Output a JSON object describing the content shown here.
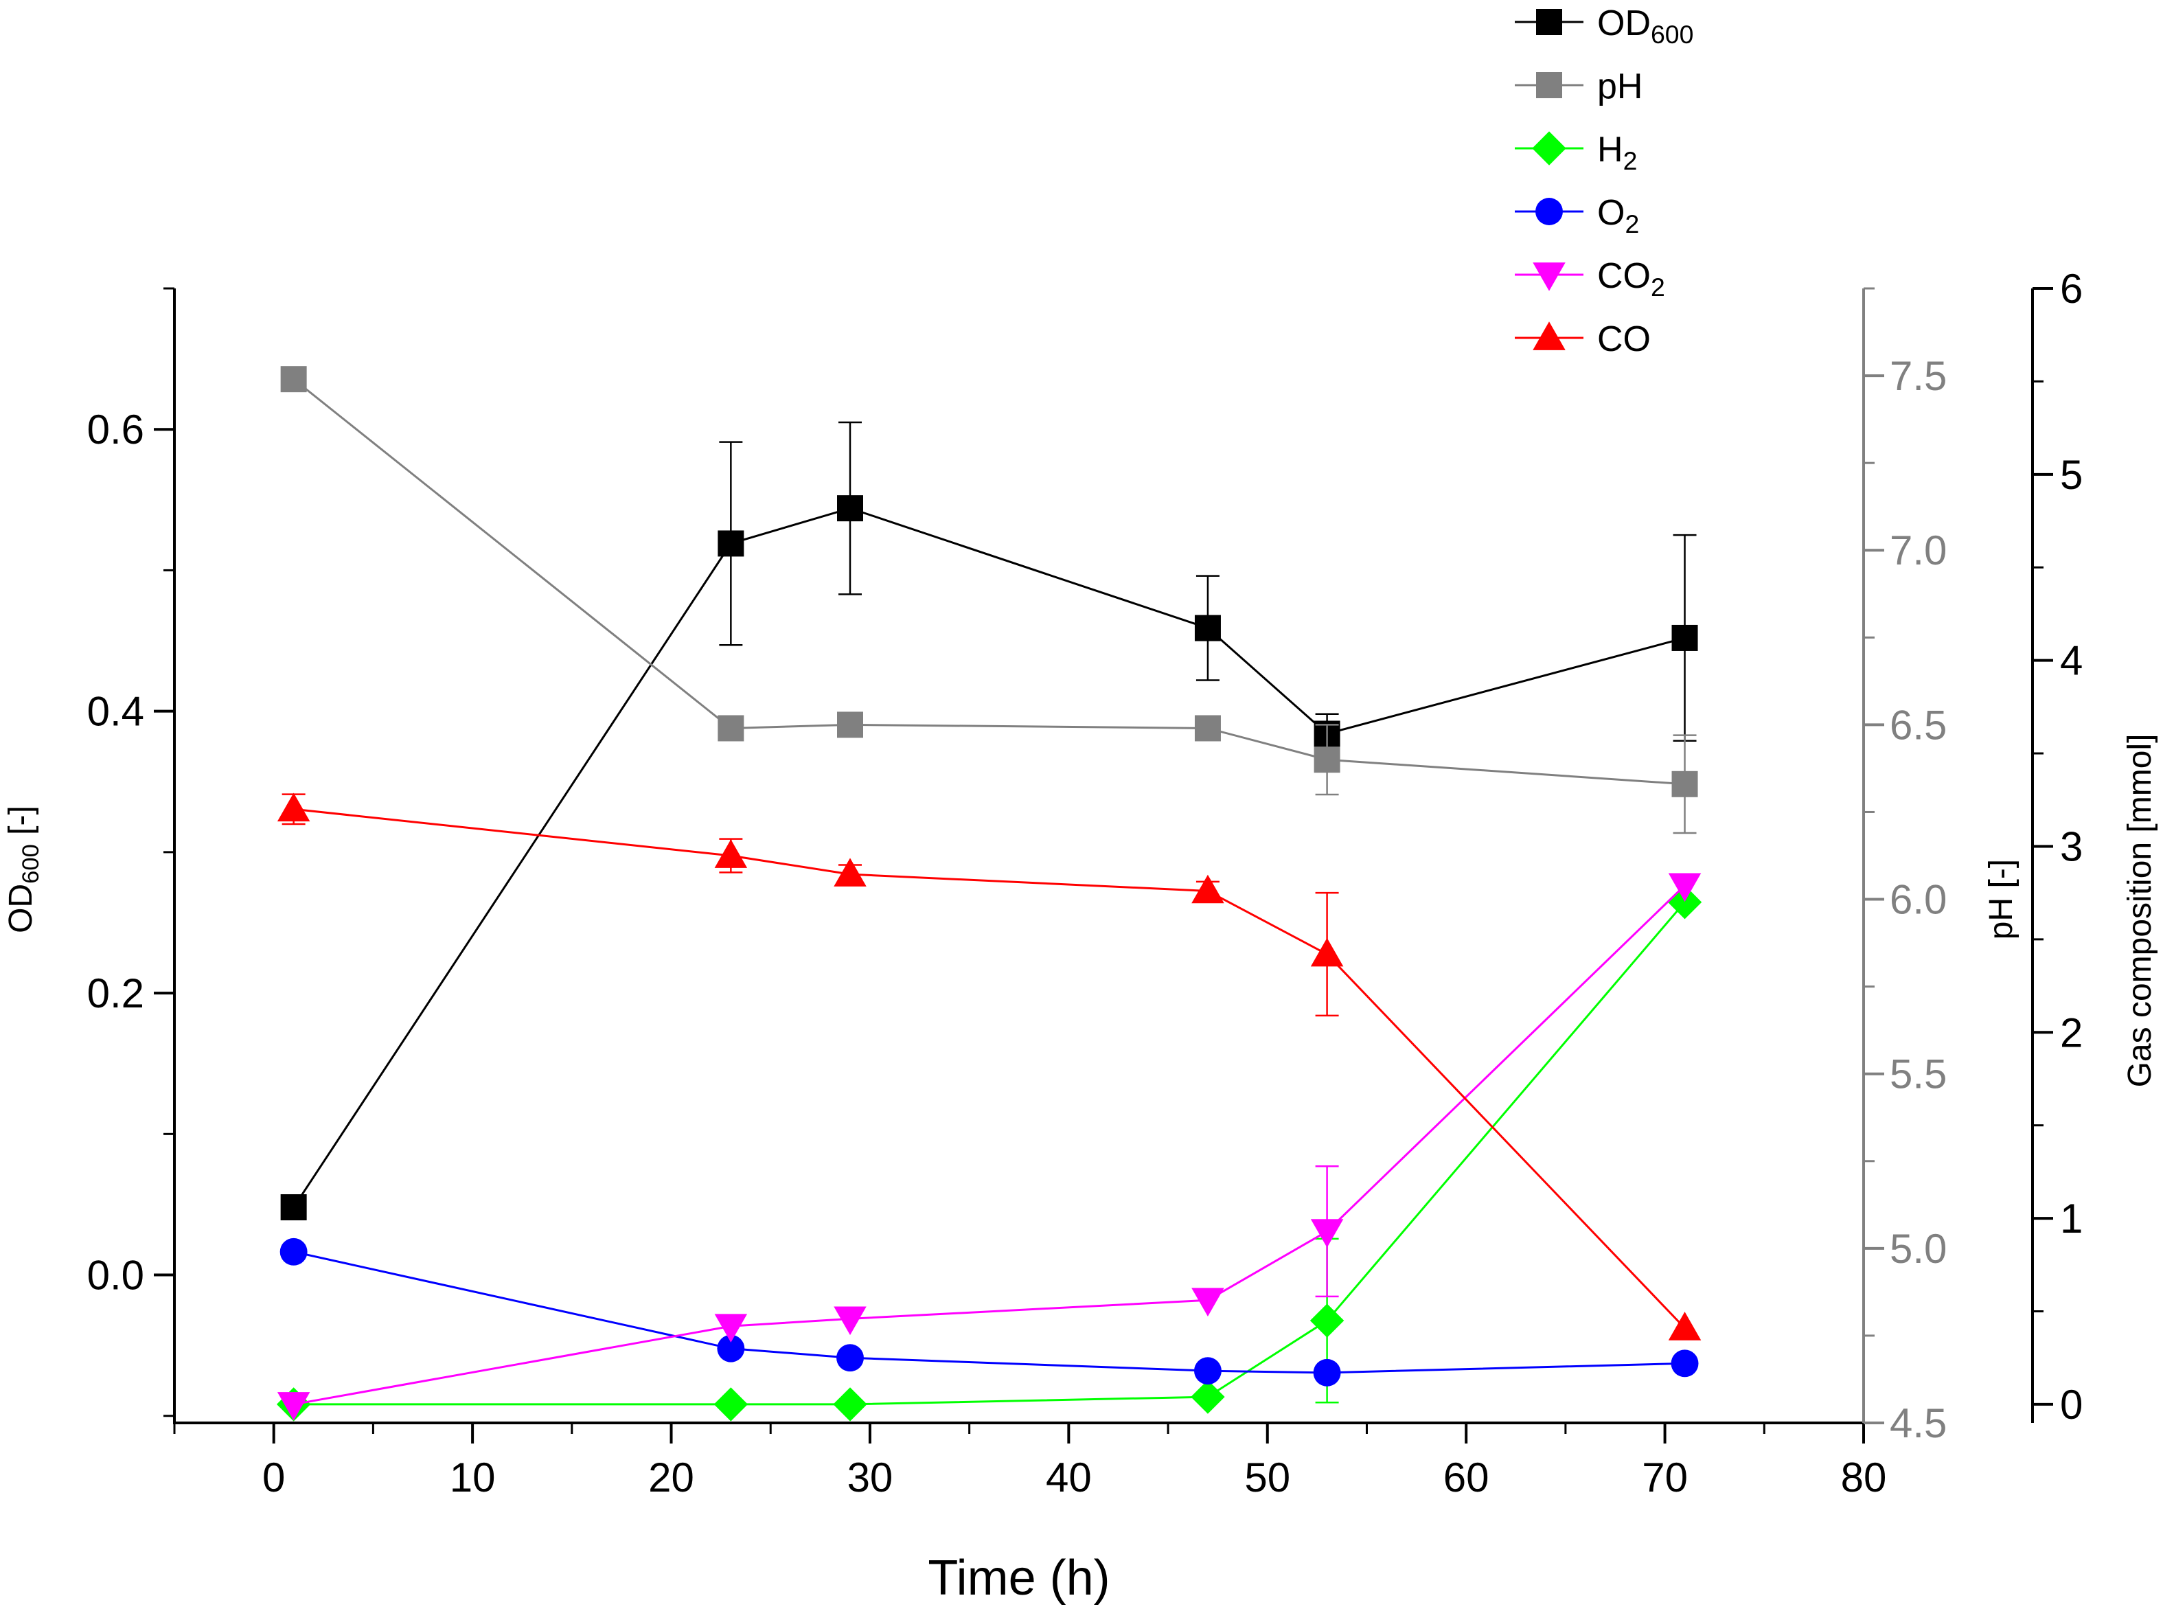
{
  "chart_data": {
    "type": "line",
    "x_axis": {
      "label": "Time (h)",
      "range": [
        -5,
        80
      ],
      "ticks": [
        0,
        10,
        20,
        30,
        40,
        50,
        60,
        70,
        80
      ],
      "tick_labels": [
        "0",
        "10",
        "20",
        "30",
        "40",
        "50",
        "60",
        "70",
        "80"
      ]
    },
    "y_left": {
      "label_main": "OD",
      "label_sub": "600",
      "label_suffix": " [-]",
      "range": [
        -0.105,
        0.7
      ],
      "ticks": [
        0.0,
        0.2,
        0.4,
        0.6
      ],
      "tick_labels": [
        "0.0",
        "0.2",
        "0.4",
        "0.6"
      ],
      "color": "#000000"
    },
    "y_right_ph": {
      "label": "pH [-]",
      "range": [
        4.5,
        7.75
      ],
      "ticks": [
        4.5,
        5.0,
        5.5,
        6.0,
        6.5,
        7.0,
        7.5
      ],
      "tick_labels": [
        "4.5",
        "5.0",
        "5.5",
        "6.0",
        "6.5",
        "7.0",
        "7.5"
      ],
      "color": "#808080"
    },
    "y_right_gas": {
      "label": "Gas composition [mmol]",
      "range": [
        -0.1,
        6
      ],
      "ticks": [
        0,
        1,
        2,
        3,
        4,
        5,
        6
      ],
      "tick_labels": [
        "0",
        "1",
        "2",
        "3",
        "4",
        "5",
        "6"
      ],
      "color": "#000000"
    },
    "series": [
      {
        "name": "OD",
        "name_sub": "600",
        "axis": "left",
        "color": "#000000",
        "marker": "square",
        "x": [
          1,
          23,
          29,
          47,
          53,
          71
        ],
        "y": [
          0.048,
          0.519,
          0.544,
          0.459,
          0.384,
          0.452
        ],
        "err": [
          0,
          0.072,
          0.061,
          0.037,
          0.014,
          0.073
        ]
      },
      {
        "name": "pH",
        "name_sub": "",
        "axis": "ph",
        "color": "#808080",
        "marker": "square",
        "x": [
          1,
          23,
          29,
          47,
          53,
          71
        ],
        "y": [
          7.49,
          6.49,
          6.5,
          6.49,
          6.4,
          6.33
        ],
        "err": [
          0,
          0.03,
          0,
          0,
          0.1,
          0.14
        ]
      },
      {
        "name": "H",
        "name_sub": "2",
        "axis": "gas",
        "color": "#00ff00",
        "marker": "diamond",
        "x": [
          1,
          23,
          29,
          47,
          53,
          71
        ],
        "y": [
          0.0,
          0.0,
          0.0,
          0.04,
          0.45,
          2.7
        ],
        "err": [
          0,
          0,
          0,
          0,
          0.44,
          0
        ]
      },
      {
        "name": "O",
        "name_sub": "2",
        "axis": "gas",
        "color": "#0000ff",
        "marker": "circle",
        "x": [
          1,
          23,
          29,
          47,
          53,
          71
        ],
        "y": [
          0.82,
          0.3,
          0.25,
          0.18,
          0.17,
          0.22
        ],
        "err": [
          0,
          0,
          0,
          0,
          0,
          0
        ]
      },
      {
        "name": "CO",
        "name_sub": "2",
        "axis": "gas",
        "color": "#ff00ff",
        "marker": "triangle-down",
        "x": [
          1,
          23,
          29,
          47,
          53,
          71
        ],
        "y": [
          0.0,
          0.42,
          0.46,
          0.56,
          0.93,
          2.79
        ],
        "err": [
          0,
          0,
          0,
          0,
          0.35,
          0
        ]
      },
      {
        "name": "CO",
        "name_sub": "",
        "axis": "gas",
        "color": "#ff0000",
        "marker": "triangle-up",
        "x": [
          1,
          23,
          29,
          47,
          53,
          71
        ],
        "y": [
          3.2,
          2.95,
          2.85,
          2.76,
          2.42,
          0.41
        ],
        "err": [
          0.08,
          0.09,
          0.05,
          0.05,
          0.33,
          0
        ]
      }
    ]
  }
}
